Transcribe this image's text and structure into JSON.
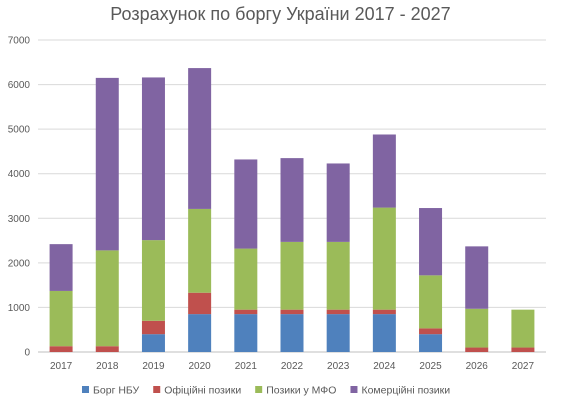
{
  "chart_data": {
    "type": "bar",
    "stacked": true,
    "title": "Розрахунок по боргу України 2017 - 2027",
    "categories": [
      "2017",
      "2018",
      "2019",
      "2020",
      "2021",
      "2022",
      "2023",
      "2024",
      "2025",
      "2026",
      "2027"
    ],
    "series": [
      {
        "name": "Борг НБУ",
        "color": "#4F81BD",
        "values": [
          0,
          0,
          400,
          850,
          850,
          850,
          850,
          850,
          400,
          0,
          0
        ]
      },
      {
        "name": "Офіційні позики",
        "color": "#C0504D",
        "values": [
          130,
          130,
          300,
          480,
          100,
          100,
          100,
          100,
          130,
          100,
          100
        ]
      },
      {
        "name": "Позики у МФО",
        "color": "#9BBB59",
        "values": [
          1240,
          2150,
          1810,
          1880,
          1370,
          1520,
          1520,
          2290,
          1190,
          870,
          850
        ]
      },
      {
        "name": "Комерційні позики",
        "color": "#8064A2",
        "values": [
          1050,
          3870,
          3650,
          3160,
          2000,
          1880,
          1760,
          1640,
          1510,
          1400,
          0
        ]
      }
    ],
    "ylim": [
      0,
      7000
    ],
    "yticks": [
      0,
      1000,
      2000,
      3000,
      4000,
      5000,
      6000,
      7000
    ],
    "grid": true,
    "legend_position": "bottom"
  }
}
